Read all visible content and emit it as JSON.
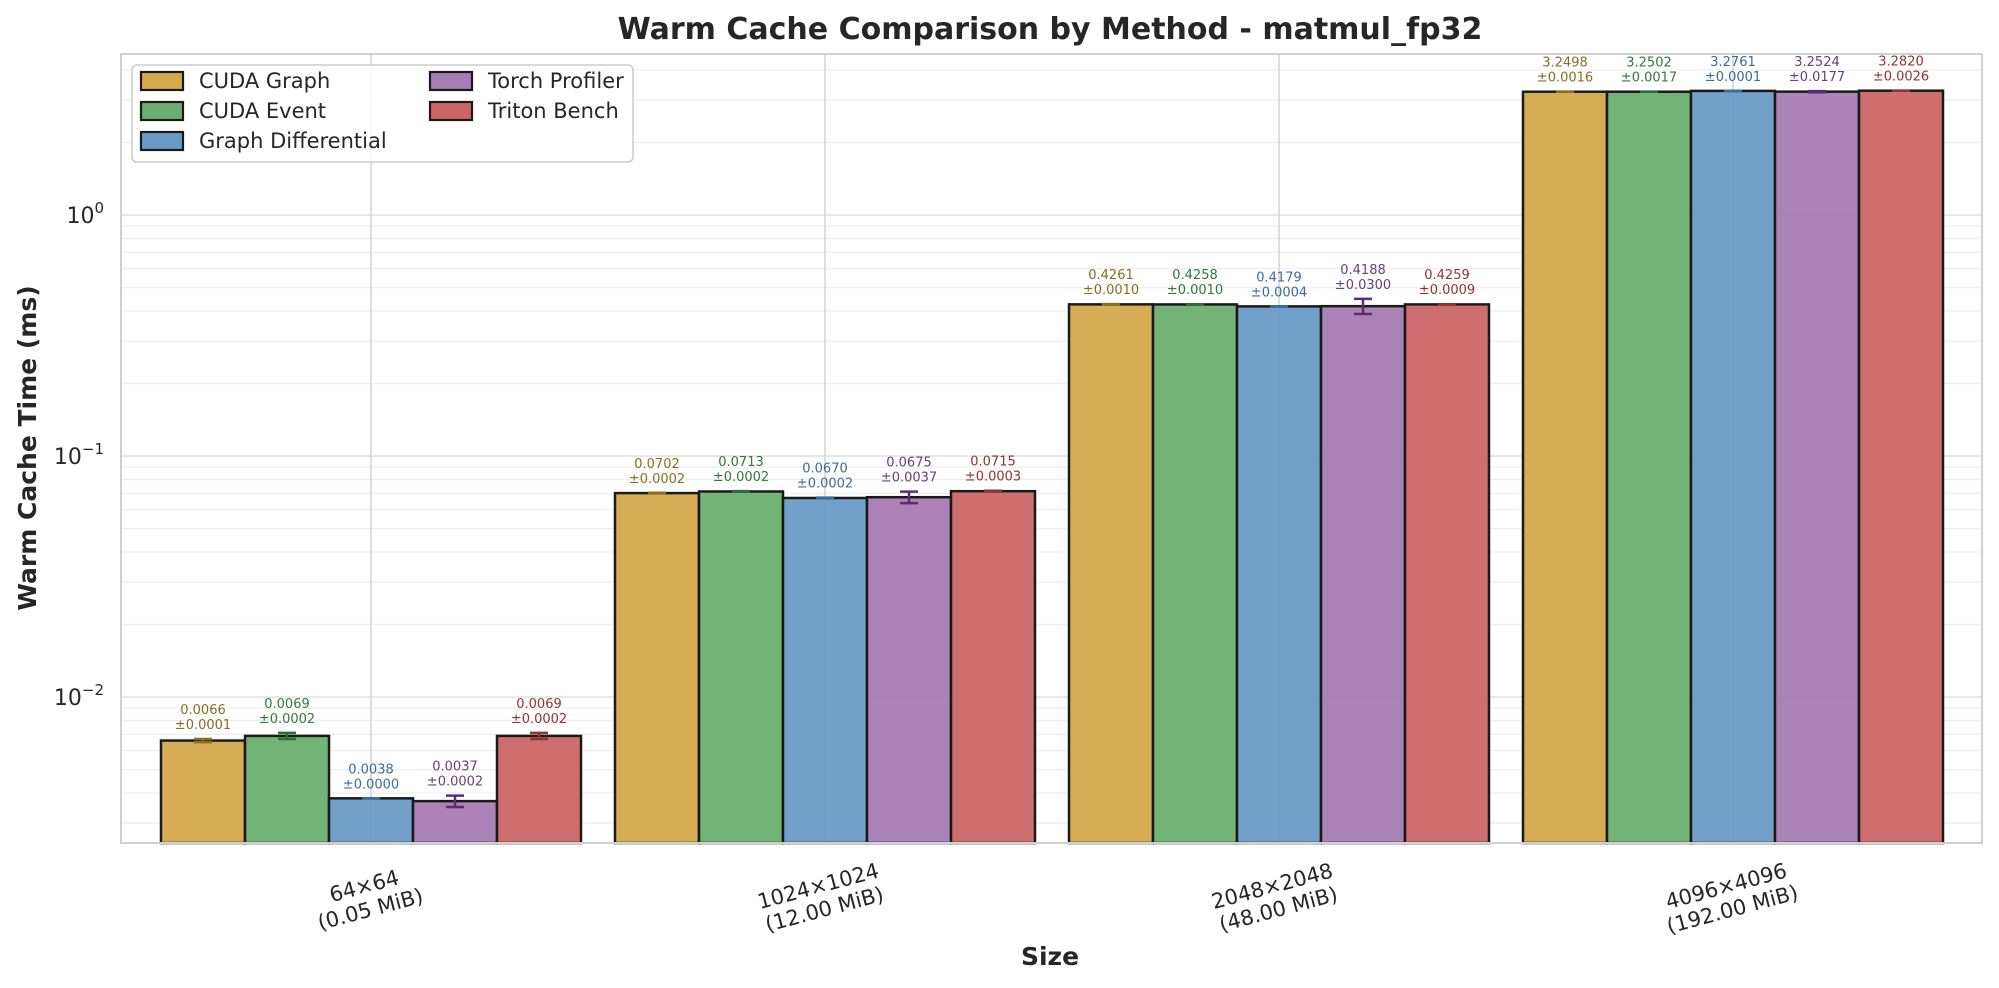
{
  "chart_data": {
    "type": "bar",
    "title": "Warm Cache Comparison by Method - matmul_fp32",
    "xlabel": "Size",
    "ylabel": "Warm Cache Time (ms)",
    "yscale": "log",
    "ylim": [
      0.00248,
      4.66
    ],
    "yticks": [
      {
        "value": 1,
        "base": "10",
        "exp": "0"
      },
      {
        "value": 0.1,
        "base": "10",
        "exp": "−1"
      },
      {
        "value": 0.01,
        "base": "10",
        "exp": "−2"
      }
    ],
    "grid": true,
    "legend_placement": "top-left",
    "legend_columns": 2,
    "categories": [
      {
        "line1": "64×64",
        "line2": "(0.05 MiB)"
      },
      {
        "line1": "1024×1024",
        "line2": "(12.00 MiB)"
      },
      {
        "line1": "2048×2048",
        "line2": "(48.00 MiB)"
      },
      {
        "line1": "4096×4096",
        "line2": "(192.00 MiB)"
      }
    ],
    "series": [
      {
        "name": "CUDA Graph",
        "color": "#d4a84b",
        "label_color": "#8a6d1e",
        "err_color": "#8a6d1e",
        "values": [
          0.0066,
          0.0702,
          0.4261,
          3.2498
        ],
        "errors": [
          0.0001,
          0.0002,
          0.001,
          0.0016
        ],
        "value_labels": [
          "0.0066",
          "0.0702",
          "0.4261",
          "3.2498"
        ],
        "error_labels": [
          "±0.0001",
          "±0.0002",
          "±0.0010",
          "±0.0016"
        ]
      },
      {
        "name": "CUDA Event",
        "color": "#6aaf6f",
        "label_color": "#2e7a3a",
        "err_color": "#2e6b35",
        "values": [
          0.0069,
          0.0713,
          0.4258,
          3.2502
        ],
        "errors": [
          0.0002,
          0.0002,
          0.001,
          0.0017
        ],
        "value_labels": [
          "0.0069",
          "0.0713",
          "0.4258",
          "3.2502"
        ],
        "error_labels": [
          "±0.0002",
          "±0.0002",
          "±0.0010",
          "±0.0017"
        ]
      },
      {
        "name": "Graph Differential",
        "color": "#6a9bc8",
        "label_color": "#3a6c99",
        "err_color": "#3a6c99",
        "values": [
          0.0038,
          0.067,
          0.4179,
          3.2761
        ],
        "errors": [
          0.0,
          0.0002,
          0.0004,
          0.0001
        ],
        "value_labels": [
          "0.0038",
          "0.0670",
          "0.4179",
          "3.2761"
        ],
        "error_labels": [
          "±0.0000",
          "±0.0002",
          "±0.0004",
          "±0.0001"
        ]
      },
      {
        "name": "Torch Profiler",
        "color": "#a67cb4",
        "label_color": "#6a3d7f",
        "err_color": "#5a2d6f",
        "values": [
          0.0037,
          0.0675,
          0.4188,
          3.2524
        ],
        "errors": [
          0.0002,
          0.0037,
          0.03,
          0.0177
        ],
        "value_labels": [
          "0.0037",
          "0.0675",
          "0.4188",
          "3.2524"
        ],
        "error_labels": [
          "±0.0002",
          "±0.0037",
          "±0.0300",
          "±0.0177"
        ]
      },
      {
        "name": "Triton Bench",
        "color": "#cc6666",
        "label_color": "#8f3434",
        "err_color": "#8f3434",
        "values": [
          0.0069,
          0.0715,
          0.4259,
          3.282
        ],
        "errors": [
          0.0002,
          0.0003,
          0.0009,
          0.0026
        ],
        "value_labels": [
          "0.0069",
          "0.0715",
          "0.4259",
          "3.2820"
        ],
        "error_labels": [
          "±0.0002",
          "±0.0003",
          "±0.0009",
          "±0.0026"
        ]
      }
    ]
  }
}
